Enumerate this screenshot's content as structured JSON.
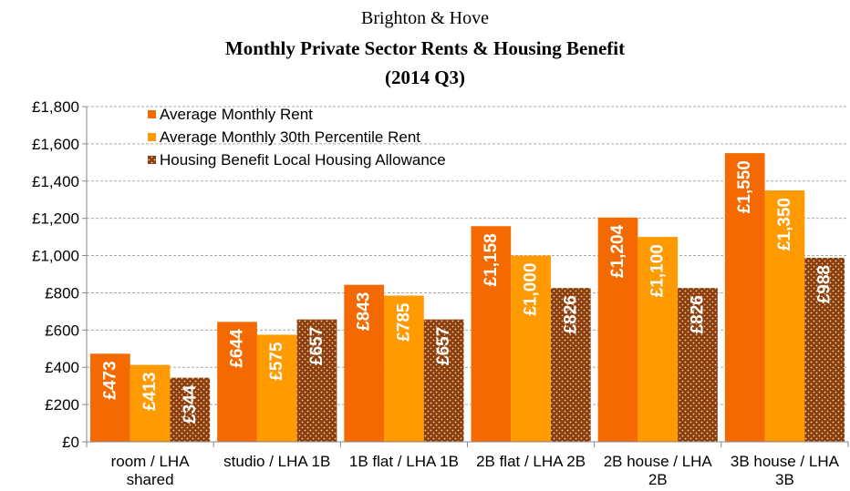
{
  "chart_data": {
    "type": "bar",
    "title": "Brighton & Hove",
    "subtitle": "Monthly Private Sector Rents & Housing Benefit",
    "subtitle2": "(2014 Q3)",
    "categories": [
      "room / LHA shared",
      "studio / LHA 1B",
      "1B flat / LHA 1B",
      "2B flat / LHA 2B",
      "2B house / LHA 2B",
      "3B house / LHA 3B"
    ],
    "series": [
      {
        "name": "Average Monthly Rent",
        "color": "#f46a00",
        "values": [
          473,
          644,
          843,
          1158,
          1204,
          1550
        ],
        "value_labels": [
          "£473",
          "£644",
          "£843",
          "£1,158",
          "£1,204",
          "£1,550"
        ]
      },
      {
        "name": "Average Monthly 30th Percentile Rent",
        "color": "#ff9a00",
        "values": [
          413,
          575,
          785,
          1000,
          1100,
          1350
        ],
        "value_labels": [
          "£413",
          "£575",
          "£785",
          "£1,000",
          "£1,100",
          "£1,350"
        ]
      },
      {
        "name": "Housing Benefit Local Housing Allowance",
        "color": "#8b3e0c",
        "values": [
          344,
          657,
          657,
          826,
          826,
          988
        ],
        "value_labels": [
          "£344",
          "£657",
          "£657",
          "£826",
          "£826",
          "£988"
        ]
      }
    ],
    "ylim": [
      0,
      1800
    ],
    "yticks": [
      {
        "value": 0,
        "label": "£0"
      },
      {
        "value": 200,
        "label": "£200"
      },
      {
        "value": 400,
        "label": "£400"
      },
      {
        "value": 600,
        "label": "£600"
      },
      {
        "value": 800,
        "label": "£800"
      },
      {
        "value": 1000,
        "label": "£1,000"
      },
      {
        "value": 1200,
        "label": "£1,200"
      },
      {
        "value": 1400,
        "label": "£1,400"
      },
      {
        "value": 1600,
        "label": "£1,600"
      },
      {
        "value": 1800,
        "label": "£1,800"
      }
    ],
    "grid": true,
    "legend": "upper left"
  }
}
